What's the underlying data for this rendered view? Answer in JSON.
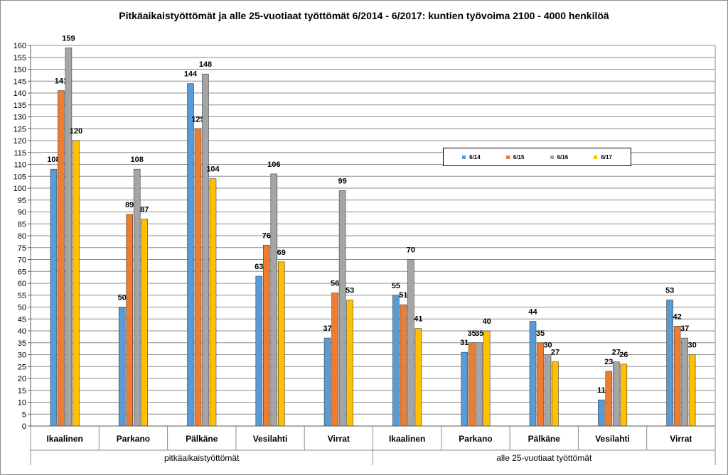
{
  "chart_data": {
    "type": "bar",
    "title": "Pitkäaikaistyöttömät ja alle 25-vuotiaat työttömät 6/2014 - 6/2017: kuntien työvoima 2100 - 4000 henkilöä",
    "xlabel": "",
    "ylabel": "",
    "ylim": [
      0,
      160
    ],
    "ytick_step": 5,
    "grid": true,
    "legend_position": "right",
    "categories": [
      "Ikaalinen",
      "Parkano",
      "Pälkäne",
      "Vesilahti",
      "Virrat",
      "Ikaalinen",
      "Parkano",
      "Pälkäne",
      "Vesilahti",
      "Virrat"
    ],
    "groups": [
      {
        "label": "pitkäaikaistyöttömät",
        "count": 5
      },
      {
        "label": "alle 25-vuotiaat työttömät",
        "count": 5
      }
    ],
    "series": [
      {
        "name": "6/14",
        "color": "#5B9BD5",
        "values": [
          108,
          50,
          144,
          63,
          37,
          55,
          31,
          44,
          11,
          53
        ]
      },
      {
        "name": "6/15",
        "color": "#ED7D31",
        "values": [
          141,
          89,
          125,
          76,
          56,
          51,
          35,
          35,
          23,
          42
        ]
      },
      {
        "name": "6/16",
        "color": "#A5A5A5",
        "values": [
          159,
          108,
          148,
          106,
          99,
          70,
          35,
          30,
          27,
          37
        ]
      },
      {
        "name": "6/17",
        "color": "#FFC000",
        "values": [
          120,
          87,
          104,
          69,
          53,
          41,
          40,
          27,
          26,
          30
        ]
      }
    ]
  }
}
